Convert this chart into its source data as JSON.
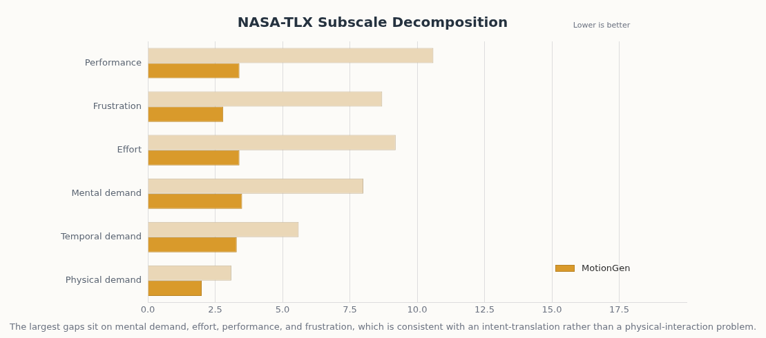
{
  "chart_data": {
    "type": "bar",
    "orientation": "horizontal",
    "title": "NASA-TLX Subscale Decomposition",
    "categories": [
      "Performance",
      "Frustration",
      "Effort",
      "Mental demand",
      "Temporal demand",
      "Physical demand"
    ],
    "series": [
      {
        "name": "MotionGen",
        "color": "#d99a2b",
        "values": [
          3.4,
          2.8,
          3.4,
          3.5,
          3.3,
          2.0
        ]
      },
      {
        "color": "#ead7b7",
        "values": [
          10.6,
          8.7,
          9.2,
          8.0,
          5.6,
          3.1
        ]
      }
    ],
    "xlim": [
      0,
      20
    ],
    "xticks": [
      {
        "value": 0,
        "label": "0.0"
      },
      2.5,
      {
        "value": 5,
        "label": "5.0"
      },
      7.5,
      {
        "value": 10,
        "label": "10.0"
      },
      12.5,
      {
        "value": 15,
        "label": "15.0"
      },
      17.5
    ],
    "grid": "x",
    "legend": "bottom right",
    "annotations": [
      "Lower is better",
      "The largest gaps sit on mental demand, effort, performance, and frustration, which is consistent with an intent-translation rather than a physical-interaction problem."
    ]
  }
}
